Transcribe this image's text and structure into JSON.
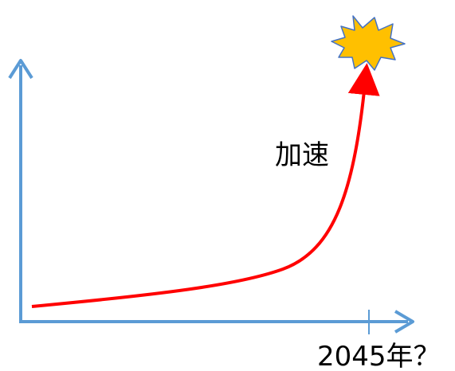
{
  "diagram": {
    "curve_label": "加速",
    "x_tick_label": "2045年？",
    "colors": {
      "axis": "#5b9bd5",
      "curve": "#ff0000",
      "burst_fill": "#ffc000",
      "burst_stroke": "#4472c4",
      "text": "#000000"
    }
  }
}
